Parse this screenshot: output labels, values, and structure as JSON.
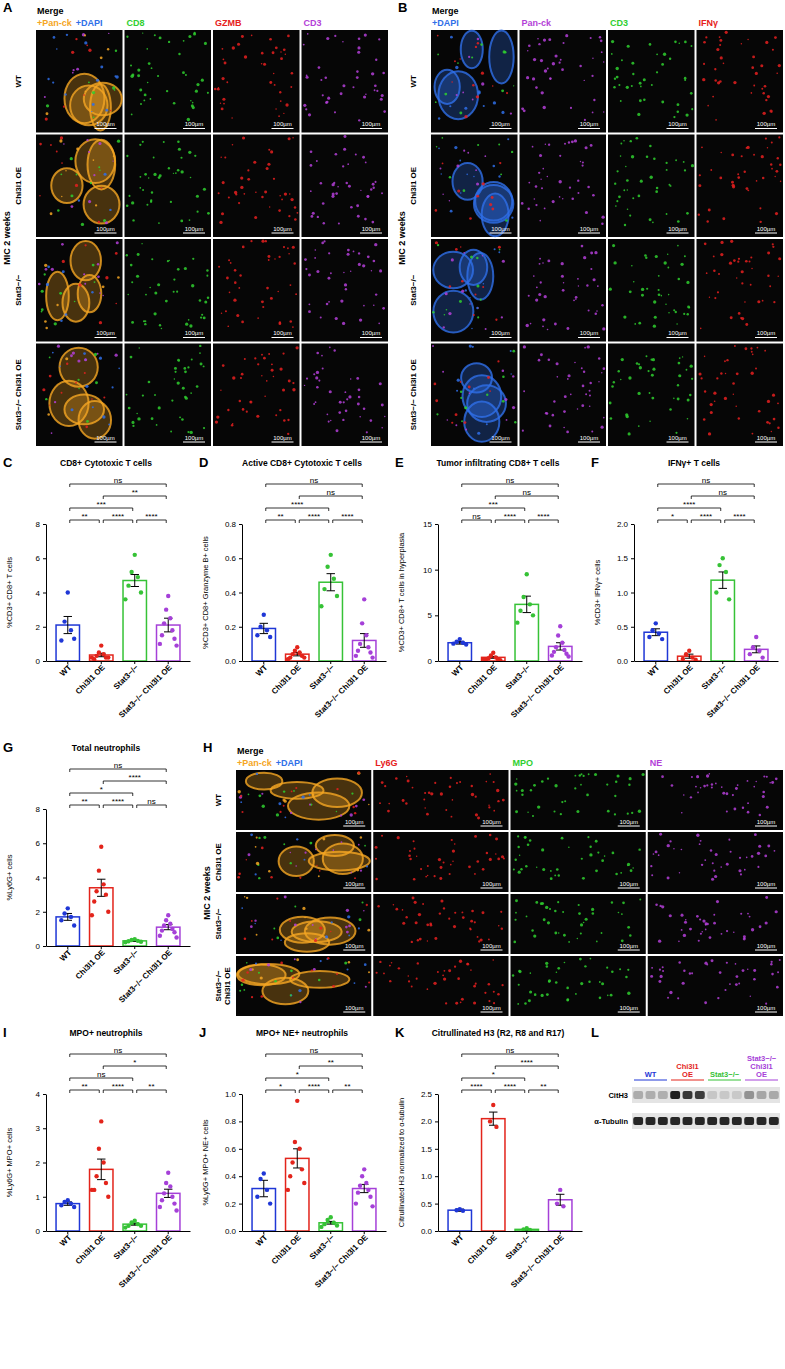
{
  "chart_data": [
    {
      "type": "bar",
      "panel": "C",
      "title": "CD8+ Cytotoxic T cells",
      "y_label": "%CD3+ CD8+ T cells",
      "categories": [
        "WT",
        "Chi3l1 OE",
        "Stat3−/−",
        "Stat3−/− Chi3l1 OE"
      ],
      "colors": [
        "#1f37d6",
        "#e3241b",
        "#36c236",
        "#a540d8"
      ],
      "values": [
        2.1,
        0.35,
        4.7,
        2.1
      ],
      "errors": [
        0.5,
        0.1,
        0.35,
        0.4
      ],
      "points": [
        [
          4.0,
          2.3,
          1.8,
          1.2,
          1.3
        ],
        [
          0.9,
          0.5,
          0.4,
          0.3,
          0.2,
          0.1,
          0.2,
          0.2
        ],
        [
          6.2,
          5.2,
          4.9,
          4.4,
          4.0,
          3.6
        ],
        [
          3.8,
          3.0,
          2.5,
          2.2,
          1.8,
          1.5,
          1.3,
          1.0,
          0.9
        ]
      ],
      "ylim": [
        0,
        8
      ],
      "yticks": [
        0,
        2,
        4,
        6,
        8
      ],
      "comparisons": [
        {
          "pair": [
            0,
            1
          ],
          "label": "**"
        },
        {
          "pair": [
            1,
            2
          ],
          "label": "****"
        },
        {
          "pair": [
            2,
            3
          ],
          "label": "****"
        },
        {
          "pair": [
            0,
            2
          ],
          "label": "***"
        },
        {
          "pair": [
            1,
            3
          ],
          "label": "**"
        },
        {
          "pair": [
            0,
            3
          ],
          "label": "ns"
        }
      ]
    },
    {
      "type": "bar",
      "panel": "D",
      "title": "Active CD8+ Cytotoxic T cells",
      "y_label": "%CD3+ CD8+ Granzyme B+ cells",
      "categories": [
        "WT",
        "Chi3l1 OE",
        "Stat3−/−",
        "Stat3−/− Chi3l1 OE"
      ],
      "colors": [
        "#1f37d6",
        "#e3241b",
        "#36c236",
        "#a540d8"
      ],
      "values": [
        0.19,
        0.04,
        0.46,
        0.12
      ],
      "errors": [
        0.03,
        0.01,
        0.05,
        0.04
      ],
      "points": [
        [
          0.27,
          0.2,
          0.18,
          0.15,
          0.14
        ],
        [
          0.08,
          0.06,
          0.05,
          0.04,
          0.03,
          0.02,
          0.02,
          0.01
        ],
        [
          0.62,
          0.55,
          0.48,
          0.42,
          0.38,
          0.32
        ],
        [
          0.36,
          0.22,
          0.15,
          0.1,
          0.08,
          0.06,
          0.05,
          0.03,
          0.02
        ]
      ],
      "ylim": [
        0,
        0.8
      ],
      "yticks": [
        {
          "value": 0,
          "label": "0.0"
        },
        0.2,
        0.4,
        0.6,
        0.8
      ],
      "comparisons": [
        {
          "pair": [
            0,
            1
          ],
          "label": "**"
        },
        {
          "pair": [
            1,
            2
          ],
          "label": "****"
        },
        {
          "pair": [
            2,
            3
          ],
          "label": "****"
        },
        {
          "pair": [
            0,
            2
          ],
          "label": "****"
        },
        {
          "pair": [
            1,
            3
          ],
          "label": "ns"
        },
        {
          "pair": [
            0,
            3
          ],
          "label": "ns"
        }
      ]
    },
    {
      "type": "bar",
      "panel": "E",
      "title": "Tumor infiltrating CD8+ T cells",
      "y_label": "%CD3+ CD8+ T cells in hyperplasia",
      "categories": [
        "WT",
        "Chi3l1 OE",
        "Stat3−/−",
        "Stat3−/− Chi3l1 OE"
      ],
      "colors": [
        "#1f37d6",
        "#e3241b",
        "#36c236",
        "#a540d8"
      ],
      "values": [
        2.0,
        0.4,
        6.2,
        1.6
      ],
      "errors": [
        0.15,
        0.1,
        0.9,
        0.4
      ],
      "points": [
        [
          2.4,
          2.1,
          2.0,
          1.9,
          1.8
        ],
        [
          0.9,
          0.6,
          0.4,
          0.3,
          0.2,
          0.2,
          0.1,
          0.2
        ],
        [
          9.5,
          7.0,
          6.2,
          5.5,
          5.0,
          4.2
        ],
        [
          3.8,
          2.8,
          2.0,
          1.5,
          1.2,
          1.0,
          0.8,
          0.6,
          0.5
        ]
      ],
      "ylim": [
        0,
        15
      ],
      "yticks": [
        0,
        5,
        10,
        15
      ],
      "comparisons": [
        {
          "pair": [
            0,
            1
          ],
          "label": "ns"
        },
        {
          "pair": [
            1,
            2
          ],
          "label": "****"
        },
        {
          "pair": [
            2,
            3
          ],
          "label": "****"
        },
        {
          "pair": [
            0,
            2
          ],
          "label": "***"
        },
        {
          "pair": [
            1,
            3
          ],
          "label": "ns"
        },
        {
          "pair": [
            0,
            3
          ],
          "label": "ns"
        }
      ]
    },
    {
      "type": "bar",
      "panel": "F",
      "title": "IFNγ+ T cells",
      "y_label": "%CD3+ IFNγ+ cells",
      "categories": [
        "WT",
        "Chi3l1 OE",
        "Stat3−/−",
        "Stat3−/− Chi3l1 OE"
      ],
      "colors": [
        "#1f37d6",
        "#e3241b",
        "#36c236",
        "#a540d8"
      ],
      "values": [
        0.42,
        0.07,
        1.18,
        0.17
      ],
      "errors": [
        0.05,
        0.03,
        0.12,
        0.05
      ],
      "points": [
        [
          0.55,
          0.45,
          0.4,
          0.35,
          0.32
        ],
        [
          0.15,
          0.1,
          0.05,
          0.03,
          0.02
        ],
        [
          1.5,
          1.4,
          1.3,
          1.0,
          0.9
        ],
        [
          0.35,
          0.2,
          0.15,
          0.1,
          0.05
        ]
      ],
      "ylim": [
        0,
        2
      ],
      "yticks": [
        {
          "value": 0,
          "label": "0.0"
        },
        0.5,
        {
          "value": 1,
          "label": "1.0"
        },
        1.5,
        {
          "value": 2,
          "label": "2.0"
        }
      ],
      "comparisons": [
        {
          "pair": [
            0,
            1
          ],
          "label": "*"
        },
        {
          "pair": [
            1,
            2
          ],
          "label": "****"
        },
        {
          "pair": [
            2,
            3
          ],
          "label": "****"
        },
        {
          "pair": [
            0,
            2
          ],
          "label": "****"
        },
        {
          "pair": [
            1,
            3
          ],
          "label": "ns"
        },
        {
          "pair": [
            0,
            3
          ],
          "label": "ns"
        }
      ]
    },
    {
      "type": "bar",
      "panel": "G",
      "title": "Total neutrophils",
      "y_label": "%Ly6G+ cells",
      "categories": [
        "WT",
        "Chi3l1 OE",
        "Stat3−/−",
        "Stat3−/− Chi3l1 OE"
      ],
      "colors": [
        "#1f37d6",
        "#e3241b",
        "#36c236",
        "#a540d8"
      ],
      "values": [
        1.7,
        3.4,
        0.3,
        1.1
      ],
      "errors": [
        0.2,
        0.5,
        0.03,
        0.15
      ],
      "points": [
        [
          2.2,
          1.9,
          1.7,
          1.5,
          1.2
        ],
        [
          5.8,
          4.4,
          3.6,
          3.2,
          3.0,
          2.6,
          2.0,
          1.8
        ],
        [
          0.4,
          0.35,
          0.3,
          0.28,
          0.25,
          0.22
        ],
        [
          1.8,
          1.5,
          1.3,
          1.2,
          1.0,
          0.9,
          0.8,
          0.6,
          0.5
        ]
      ],
      "ylim": [
        0,
        8
      ],
      "yticks": [
        0,
        2,
        4,
        6,
        8
      ],
      "comparisons": [
        {
          "pair": [
            0,
            1
          ],
          "label": "**"
        },
        {
          "pair": [
            1,
            2
          ],
          "label": "****"
        },
        {
          "pair": [
            2,
            3
          ],
          "label": "ns"
        },
        {
          "pair": [
            0,
            2
          ],
          "label": "*"
        },
        {
          "pair": [
            1,
            3
          ],
          "label": "****"
        },
        {
          "pair": [
            0,
            3
          ],
          "label": "ns"
        }
      ]
    },
    {
      "type": "bar",
      "panel": "I",
      "title": "MPO+ neutrophils",
      "y_label": "%Ly6G+ MPO+ cells",
      "categories": [
        "WT",
        "Chi3l1 OE",
        "Stat3−/−",
        "Stat3−/− Chi3l1 OE"
      ],
      "colors": [
        "#1f37d6",
        "#e3241b",
        "#36c236",
        "#a540d8"
      ],
      "values": [
        0.8,
        1.8,
        0.2,
        1.1
      ],
      "errors": [
        0.05,
        0.3,
        0.03,
        0.12
      ],
      "points": [
        [
          0.9,
          0.85,
          0.8,
          0.75,
          0.7
        ],
        [
          3.2,
          2.4,
          2.0,
          1.6,
          1.4,
          1.2,
          1.0,
          1.2
        ],
        [
          0.3,
          0.25,
          0.2,
          0.15,
          0.15,
          0.1
        ],
        [
          1.7,
          1.4,
          1.3,
          1.1,
          1.0,
          0.9,
          0.8,
          0.7,
          0.6
        ]
      ],
      "ylim": [
        0,
        4
      ],
      "yticks": [
        0,
        1,
        2,
        3,
        4
      ],
      "comparisons": [
        {
          "pair": [
            0,
            1
          ],
          "label": "**"
        },
        {
          "pair": [
            1,
            2
          ],
          "label": "****"
        },
        {
          "pair": [
            2,
            3
          ],
          "label": "**"
        },
        {
          "pair": [
            0,
            2
          ],
          "label": "ns"
        },
        {
          "pair": [
            1,
            3
          ],
          "label": "*"
        },
        {
          "pair": [
            0,
            3
          ],
          "label": "ns"
        }
      ]
    },
    {
      "type": "bar",
      "panel": "J",
      "title": "MPO+ NE+ neutrophils",
      "y_label": "%Ly6G+ MPO+ NE+ cells",
      "categories": [
        "WT",
        "Chi3l1 OE",
        "Stat3−/−",
        "Stat3−/− Chi3l1 OE"
      ],
      "colors": [
        "#1f37d6",
        "#e3241b",
        "#36c236",
        "#a540d8"
      ],
      "values": [
        0.31,
        0.53,
        0.06,
        0.31
      ],
      "errors": [
        0.06,
        0.07,
        0.01,
        0.03
      ],
      "points": [
        [
          0.42,
          0.38,
          0.3,
          0.25,
          0.2
        ],
        [
          0.95,
          0.65,
          0.6,
          0.5,
          0.45,
          0.4,
          0.35,
          0.3
        ],
        [
          0.1,
          0.08,
          0.06,
          0.05,
          0.04,
          0.03
        ],
        [
          0.45,
          0.4,
          0.35,
          0.33,
          0.3,
          0.28,
          0.25,
          0.2,
          0.18
        ]
      ],
      "ylim": [
        0,
        1
      ],
      "yticks": [
        {
          "value": 0,
          "label": "0.0"
        },
        0.2,
        0.4,
        0.6,
        0.8,
        {
          "value": 1,
          "label": "1.0"
        }
      ],
      "comparisons": [
        {
          "pair": [
            0,
            1
          ],
          "label": "*"
        },
        {
          "pair": [
            1,
            2
          ],
          "label": "****"
        },
        {
          "pair": [
            2,
            3
          ],
          "label": "**"
        },
        {
          "pair": [
            0,
            2
          ],
          "label": "*"
        },
        {
          "pair": [
            1,
            3
          ],
          "label": "**"
        },
        {
          "pair": [
            0,
            3
          ],
          "label": "ns"
        }
      ]
    },
    {
      "type": "bar",
      "panel": "K",
      "title": "Citrullinated H3 (R2, R8 and R17)",
      "y_label": "Citrullinated H3 normalized to α-tubulin",
      "categories": [
        "WT",
        "Chi3l1 OE",
        "Stat3−/−",
        "Stat3−/− Chi3l1 OE"
      ],
      "colors": [
        "#1f37d6",
        "#e3241b",
        "#36c236",
        "#a540d8"
      ],
      "values": [
        0.38,
        2.05,
        0.03,
        0.57
      ],
      "errors": [
        0.02,
        0.12,
        0.01,
        0.1
      ],
      "points": [
        [
          0.4,
          0.38,
          0.37
        ],
        [
          2.3,
          2.0,
          1.9
        ],
        [
          0.05,
          0.03,
          0.02
        ],
        [
          0.75,
          0.5,
          0.45
        ]
      ],
      "ylim": [
        0,
        2.5
      ],
      "yticks": [
        {
          "value": 0,
          "label": "0.0"
        },
        0.5,
        {
          "value": 1,
          "label": "1.0"
        },
        1.5,
        {
          "value": 2,
          "label": "2.0"
        },
        2.5
      ],
      "comparisons": [
        {
          "pair": [
            0,
            1
          ],
          "label": "****"
        },
        {
          "pair": [
            1,
            2
          ],
          "label": "****"
        },
        {
          "pair": [
            2,
            3
          ],
          "label": "**"
        },
        {
          "pair": [
            0,
            2
          ],
          "label": "*"
        },
        {
          "pair": [
            1,
            3
          ],
          "label": "****"
        },
        {
          "pair": [
            0,
            3
          ],
          "label": "ns"
        }
      ]
    }
  ],
  "images": [
    {
      "panel": "A",
      "group": "MIC 2 weeks",
      "rows": [
        "WT",
        "Chi3l1 OE",
        "Stat3−/−",
        "Stat3−/− Chi3l1 OE"
      ],
      "merge": "Merge",
      "merge_stains": [
        {
          "text": "+Pan-ck",
          "color": "#f5a623"
        },
        {
          "text": "+DAPI",
          "color": "#2f6fe8"
        }
      ],
      "channels": [
        {
          "text": "CD8",
          "color": "#2fcf2f"
        },
        {
          "text": "GZMB",
          "color": "#e62020"
        },
        {
          "text": "CD3",
          "color": "#b43fd8"
        }
      ],
      "scale_bar": "100µm"
    },
    {
      "panel": "B",
      "group": "MIC 2 weeks",
      "rows": [
        "WT",
        "Chi3l1 OE",
        "Stat3−/−",
        "Stat3−/− Chi3l1 OE"
      ],
      "merge": "Merge",
      "merge_stains": [
        {
          "text": "+DAPI",
          "color": "#2f6fe8"
        }
      ],
      "channels": [
        {
          "text": "Pan-ck",
          "color": "#b43fd8"
        },
        {
          "text": "CD3",
          "color": "#2fcf2f"
        },
        {
          "text": "IFNγ",
          "color": "#e62020"
        }
      ],
      "scale_bar": "100µm"
    },
    {
      "panel": "H",
      "group": "MIC 2 weeks",
      "rows": [
        "WT",
        "Chi3l1 OE",
        "Stat3−/−",
        "Stat3−/− Chi3l1 OE"
      ],
      "merge": "Merge",
      "merge_stains": [
        {
          "text": "+Pan-ck",
          "color": "#f5a623"
        },
        {
          "text": "+DAPI",
          "color": "#2f6fe8"
        }
      ],
      "channels": [
        {
          "text": "Ly6G",
          "color": "#e62020"
        },
        {
          "text": "MPO",
          "color": "#2fcf2f"
        },
        {
          "text": "NE",
          "color": "#b43fd8"
        }
      ],
      "scale_bar": "100µm"
    }
  ],
  "blot": {
    "panel": "L",
    "groups": [
      {
        "text": "WT",
        "color": "#1f37d6"
      },
      {
        "text": "Chi3l1 OE",
        "color": "#e3241b"
      },
      {
        "text": "Stat3−/−",
        "color": "#36c236"
      },
      {
        "text": "Stat3−/− Chi3l1 OE",
        "color": "#a540d8"
      }
    ],
    "rows": [
      "CitH3",
      "α-Tubulin"
    ]
  }
}
